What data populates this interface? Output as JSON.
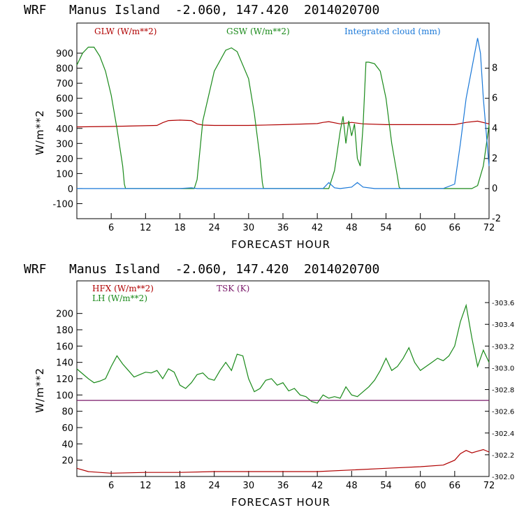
{
  "chart_data": [
    {
      "type": "line",
      "title": "WRF   Manus Island  -2.060, 147.420  2014020700",
      "xlabel": "FORECAST HOUR",
      "ylabel": "W/m**2",
      "xlim": [
        0,
        72
      ],
      "ylim": [
        -200,
        1100
      ],
      "y2lim": [
        -2,
        11
      ],
      "x_ticks": [
        6,
        12,
        18,
        24,
        30,
        36,
        42,
        48,
        54,
        60,
        66,
        72
      ],
      "y_ticks": [
        -100,
        0,
        100,
        200,
        300,
        400,
        500,
        600,
        700,
        800,
        900
      ],
      "y2_ticks": [
        -2,
        0,
        2,
        4,
        6,
        8
      ],
      "series": [
        {
          "name": "GLW (W/m**2)",
          "color": "#b00000",
          "axis": "left",
          "x": [
            0,
            6,
            12,
            14,
            15,
            16,
            18,
            20,
            21,
            22,
            24,
            30,
            36,
            42,
            43,
            44,
            46,
            48,
            50,
            54,
            60,
            66,
            68,
            70,
            72
          ],
          "values": [
            410,
            413,
            418,
            420,
            438,
            452,
            455,
            452,
            430,
            422,
            420,
            420,
            425,
            432,
            440,
            445,
            430,
            440,
            430,
            425,
            425,
            425,
            440,
            448,
            430
          ]
        },
        {
          "name": "GSW (W/m**2)",
          "color": "#1a8a1a",
          "axis": "left",
          "x": [
            0,
            1,
            2,
            3,
            4,
            5,
            6,
            7,
            8,
            8.3,
            8.5,
            20.5,
            21,
            22,
            24,
            26,
            27,
            28,
            30,
            31,
            32,
            32.4,
            32.6,
            44,
            45,
            46,
            46.5,
            47,
            47.5,
            48,
            48.5,
            49,
            49.5,
            50,
            50.5,
            51,
            52,
            53,
            54,
            55,
            56,
            56.3,
            56.5,
            69,
            70,
            71,
            72
          ],
          "values": [
            820,
            900,
            940,
            940,
            880,
            780,
            620,
            400,
            150,
            30,
            0,
            0,
            60,
            450,
            780,
            920,
            935,
            910,
            730,
            500,
            200,
            40,
            0,
            0,
            120,
            380,
            480,
            300,
            450,
            350,
            430,
            200,
            150,
            420,
            840,
            840,
            830,
            780,
            600,
            300,
            80,
            10,
            0,
            0,
            20,
            150,
            420
          ]
        },
        {
          "name": "Integrated cloud (mm)",
          "color": "#1a78d8",
          "axis": "right",
          "x": [
            0,
            18,
            20,
            21,
            43,
            44,
            45,
            46,
            48,
            49,
            50,
            52,
            64,
            66,
            67,
            68,
            69,
            70,
            70.5,
            71,
            72
          ],
          "values": [
            0,
            0,
            0.05,
            0,
            0,
            0.4,
            0.05,
            0,
            0.1,
            0.4,
            0.1,
            0,
            0,
            0.3,
            3,
            6,
            8,
            10,
            9,
            6,
            1.5
          ]
        }
      ]
    },
    {
      "type": "line",
      "title": "WRF   Manus Island  -2.060, 147.420  2014020700",
      "xlabel": "FORECAST HOUR",
      "ylabel": "W/m**2",
      "xlim": [
        0,
        72
      ],
      "ylim": [
        0,
        240
      ],
      "y2lim": [
        302.0,
        303.8
      ],
      "x_ticks": [
        6,
        12,
        18,
        24,
        30,
        36,
        42,
        48,
        54,
        60,
        66,
        72
      ],
      "y_ticks": [
        20,
        40,
        60,
        80,
        100,
        120,
        140,
        160,
        180,
        200
      ],
      "y2_ticks": [
        302.0,
        302.2,
        302.4,
        302.6,
        302.8,
        303.0,
        303.2,
        303.4,
        303.6
      ],
      "series": [
        {
          "name": "HFX (W/m**2)",
          "color": "#b00000",
          "axis": "left",
          "x": [
            0,
            2,
            4,
            6,
            12,
            18,
            24,
            30,
            36,
            42,
            48,
            54,
            60,
            64,
            66,
            67,
            68,
            69,
            70,
            71,
            72
          ],
          "values": [
            10,
            6,
            5,
            4,
            5,
            5,
            6,
            6,
            6,
            6,
            8,
            10,
            12,
            14,
            20,
            28,
            32,
            29,
            31,
            33,
            30
          ]
        },
        {
          "name": "LH (W/m**2)",
          "color": "#1a8a1a",
          "axis": "left",
          "x": [
            0,
            1,
            2,
            3,
            4,
            5,
            6,
            7,
            8,
            9,
            10,
            11,
            12,
            13,
            14,
            15,
            16,
            17,
            18,
            19,
            20,
            21,
            22,
            23,
            24,
            25,
            26,
            27,
            28,
            29,
            30,
            31,
            32,
            33,
            34,
            35,
            36,
            37,
            38,
            39,
            40,
            41,
            42,
            43,
            44,
            45,
            46,
            47,
            48,
            49,
            50,
            51,
            52,
            53,
            54,
            55,
            56,
            57,
            58,
            59,
            60,
            61,
            62,
            63,
            64,
            65,
            66,
            67,
            68,
            69,
            70,
            71,
            72
          ],
          "values": [
            132,
            126,
            120,
            115,
            117,
            120,
            135,
            148,
            138,
            130,
            122,
            125,
            128,
            127,
            130,
            120,
            132,
            128,
            112,
            108,
            115,
            125,
            127,
            120,
            118,
            130,
            140,
            130,
            150,
            148,
            120,
            104,
            108,
            118,
            120,
            112,
            115,
            105,
            108,
            100,
            98,
            92,
            90,
            100,
            96,
            98,
            96,
            110,
            100,
            98,
            104,
            110,
            118,
            130,
            145,
            130,
            135,
            145,
            158,
            140,
            130,
            135,
            140,
            145,
            142,
            148,
            160,
            190,
            210,
            170,
            135,
            155,
            140
          ]
        },
        {
          "name": "TSK (K)",
          "color": "#7a1a6a",
          "axis": "right",
          "x": [
            0,
            72
          ],
          "values": [
            302.7,
            302.7
          ]
        }
      ]
    }
  ]
}
